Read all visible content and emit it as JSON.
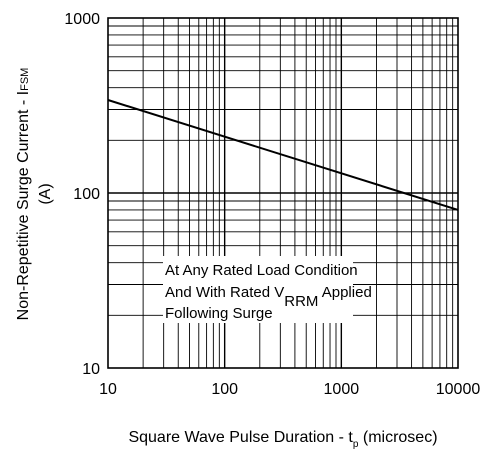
{
  "chart_data": {
    "type": "line",
    "title": "",
    "x_scale": "log",
    "y_scale": "log",
    "xlim": [
      10,
      10000
    ],
    "ylim": [
      10,
      1000
    ],
    "grid": true,
    "x_ticks": [
      "10",
      "100",
      "1000",
      "10000"
    ],
    "y_ticks": [
      "10",
      "100",
      "1000"
    ],
    "xlabel": {
      "prefix": "Square Wave Pulse Duration - t",
      "subscript": "p",
      "suffix": " (microsec)"
    },
    "ylabel": {
      "line1": "Non-Repetitive Surge Current - I",
      "line1_sub": "FSM",
      "line2": "(A)"
    },
    "annotation": {
      "line1": "At Any Rated Load Condition",
      "line2_prefix": "And With Rated V",
      "line2_sub": "RRM",
      "line2_suffix": " Applied",
      "line3": "Following Surge"
    },
    "series": [
      {
        "x": [
          10,
          10000
        ],
        "values": [
          340,
          80
        ]
      }
    ]
  }
}
